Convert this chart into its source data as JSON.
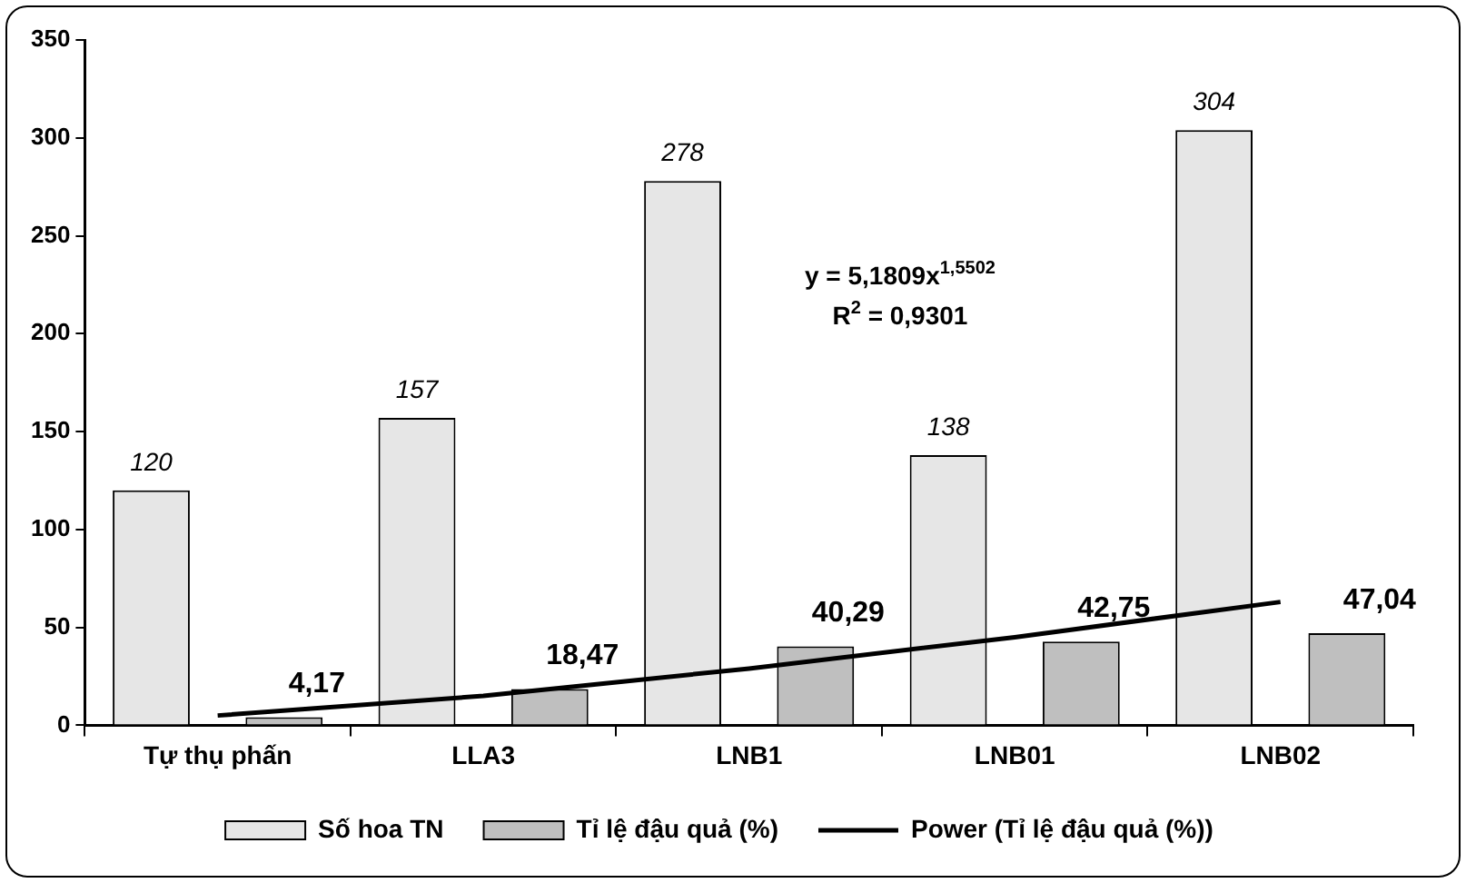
{
  "chart_data": {
    "type": "bar",
    "categories": [
      "Tự thụ phấn",
      "LLA3",
      "LNB1",
      "LNB01",
      "LNB02"
    ],
    "series": [
      {
        "name": "Số hoa TN",
        "color": "#e6e6e6",
        "values": [
          120,
          157,
          278,
          138,
          304
        ],
        "value_labels": [
          "120",
          "157",
          "278",
          "138",
          "304"
        ]
      },
      {
        "name": "Tỉ lệ đậu quả (%)",
        "color": "#bfbfbf",
        "values": [
          4.17,
          18.47,
          40.29,
          42.75,
          47.04
        ],
        "value_labels": [
          "4,17",
          "18,47",
          "40,29",
          "42,75",
          "47,04"
        ]
      },
      {
        "name": "Power (Tỉ lệ đậu quả (%))",
        "type": "line",
        "color": "#000000",
        "values": [
          5,
          15,
          29,
          45,
          63
        ]
      }
    ],
    "ylim": [
      0,
      350
    ],
    "yticks": [
      0,
      50,
      100,
      150,
      200,
      250,
      300,
      350
    ],
    "grid": false,
    "legend": "bottom",
    "marker": "none",
    "annotations": [
      "y = 5,1809x$^{1,5502}$",
      "R$^{2}$ = 0,9301"
    ]
  }
}
